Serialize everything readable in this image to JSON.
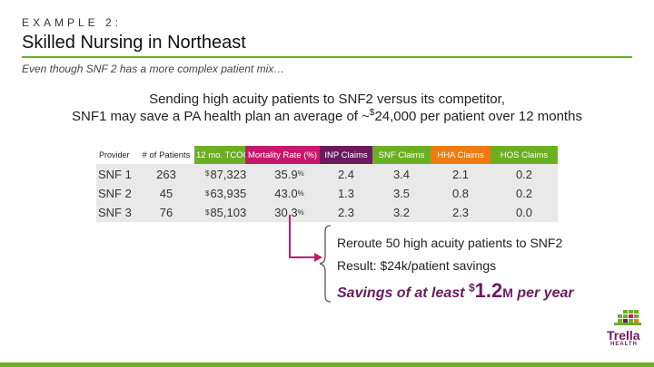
{
  "header": {
    "eyebrow": "EXAMPLE 2:",
    "title": "Skilled Nursing in Northeast",
    "subtitle": "Even though SNF 2 has a more complex patient mix…"
  },
  "headline": {
    "line1": "Sending high acuity patients to SNF2 versus its competitor,",
    "line2_before": "SNF1 may save a PA health plan an average of ~",
    "currency": "$",
    "line2_after": "24,000 per patient over 12 months"
  },
  "table": {
    "columns": {
      "provider": "Provider",
      "patients": "# of Patients",
      "tcoc": "12 mo. TCOC",
      "mortality": "Mortality Rate (%)",
      "inp": "INP Claims",
      "snf": "SNF Claims",
      "hha": "HHA Claims",
      "hos": "HOS Claims"
    },
    "rows": [
      {
        "provider": "SNF 1",
        "patients": "263",
        "cur": "$",
        "tcoc": "87,323",
        "mortality": "35.9",
        "pct": "%",
        "inp": "2.4",
        "snf": "3.4",
        "hha": "2.1",
        "hos": "0.2"
      },
      {
        "provider": "SNF 2",
        "patients": "45",
        "cur": "$",
        "tcoc": "63,935",
        "mortality": "43.0",
        "pct": "%",
        "inp": "1.3",
        "snf": "3.5",
        "hha": "0.8",
        "hos": "0.2"
      },
      {
        "provider": "SNF 3",
        "patients": "76",
        "cur": "$",
        "tcoc": "85,103",
        "mortality": "30.3",
        "pct": "%",
        "inp": "2.3",
        "snf": "3.2",
        "hha": "2.3",
        "hos": "0.0"
      }
    ]
  },
  "callout": {
    "reroute": "Reroute 50 high acuity patients to SNF2",
    "result": "Result: $24k/patient savings",
    "savings_prefix": "Savings of at least ",
    "savings_currency": "$",
    "savings_value": "1.2",
    "savings_unit": "M",
    "savings_suffix": " per year"
  },
  "logo": {
    "name": "Trella",
    "sub": "HEALTH"
  },
  "colors": {
    "green": "#6ab023",
    "magenta": "#c6186c",
    "purple": "#6a1b60",
    "orange": "#f07a10",
    "row_bg": "#e9e9e9"
  }
}
